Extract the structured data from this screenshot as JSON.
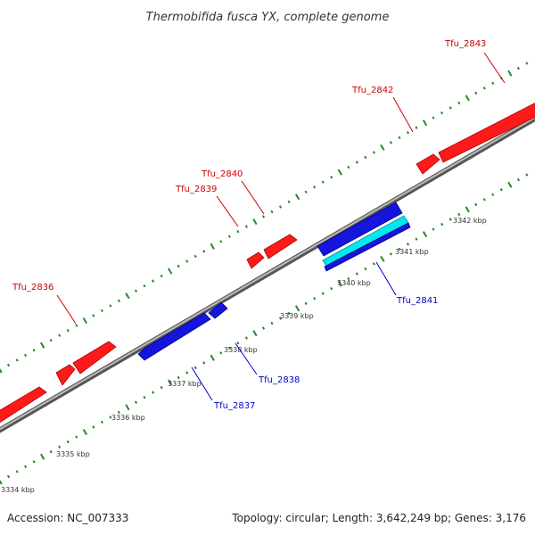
{
  "title": "Thermobifida fusca YX, complete genome",
  "footer": {
    "accession": "Accession: NC_007333",
    "topology": "Topology: circular; Length: 3,642,249 bp; Genes: 3,176"
  },
  "colors": {
    "forward": "#ff0000",
    "forward_dark": "#b00000",
    "reverse": "#1010dd",
    "reverse_dark": "#000088",
    "cyan": "#00e5ee",
    "backbone": "#888888",
    "ticks": "#228b22",
    "label_forward": "#cc0000",
    "label_reverse": "#0000cc"
  },
  "ticks": [
    "3334 kbp",
    "3335 kbp",
    "3336 kbp",
    "3337 kbp",
    "3338 kbp",
    "3339 kbp",
    "3340 kbp",
    "3341 kbp",
    "3342 kbp"
  ],
  "genes_forward": [
    "Tfu_2836",
    "Tfu_2839",
    "Tfu_2840",
    "Tfu_2842",
    "Tfu_2843"
  ],
  "genes_reverse": [
    "Tfu_2837",
    "Tfu_2838",
    "Tfu_2841"
  ]
}
